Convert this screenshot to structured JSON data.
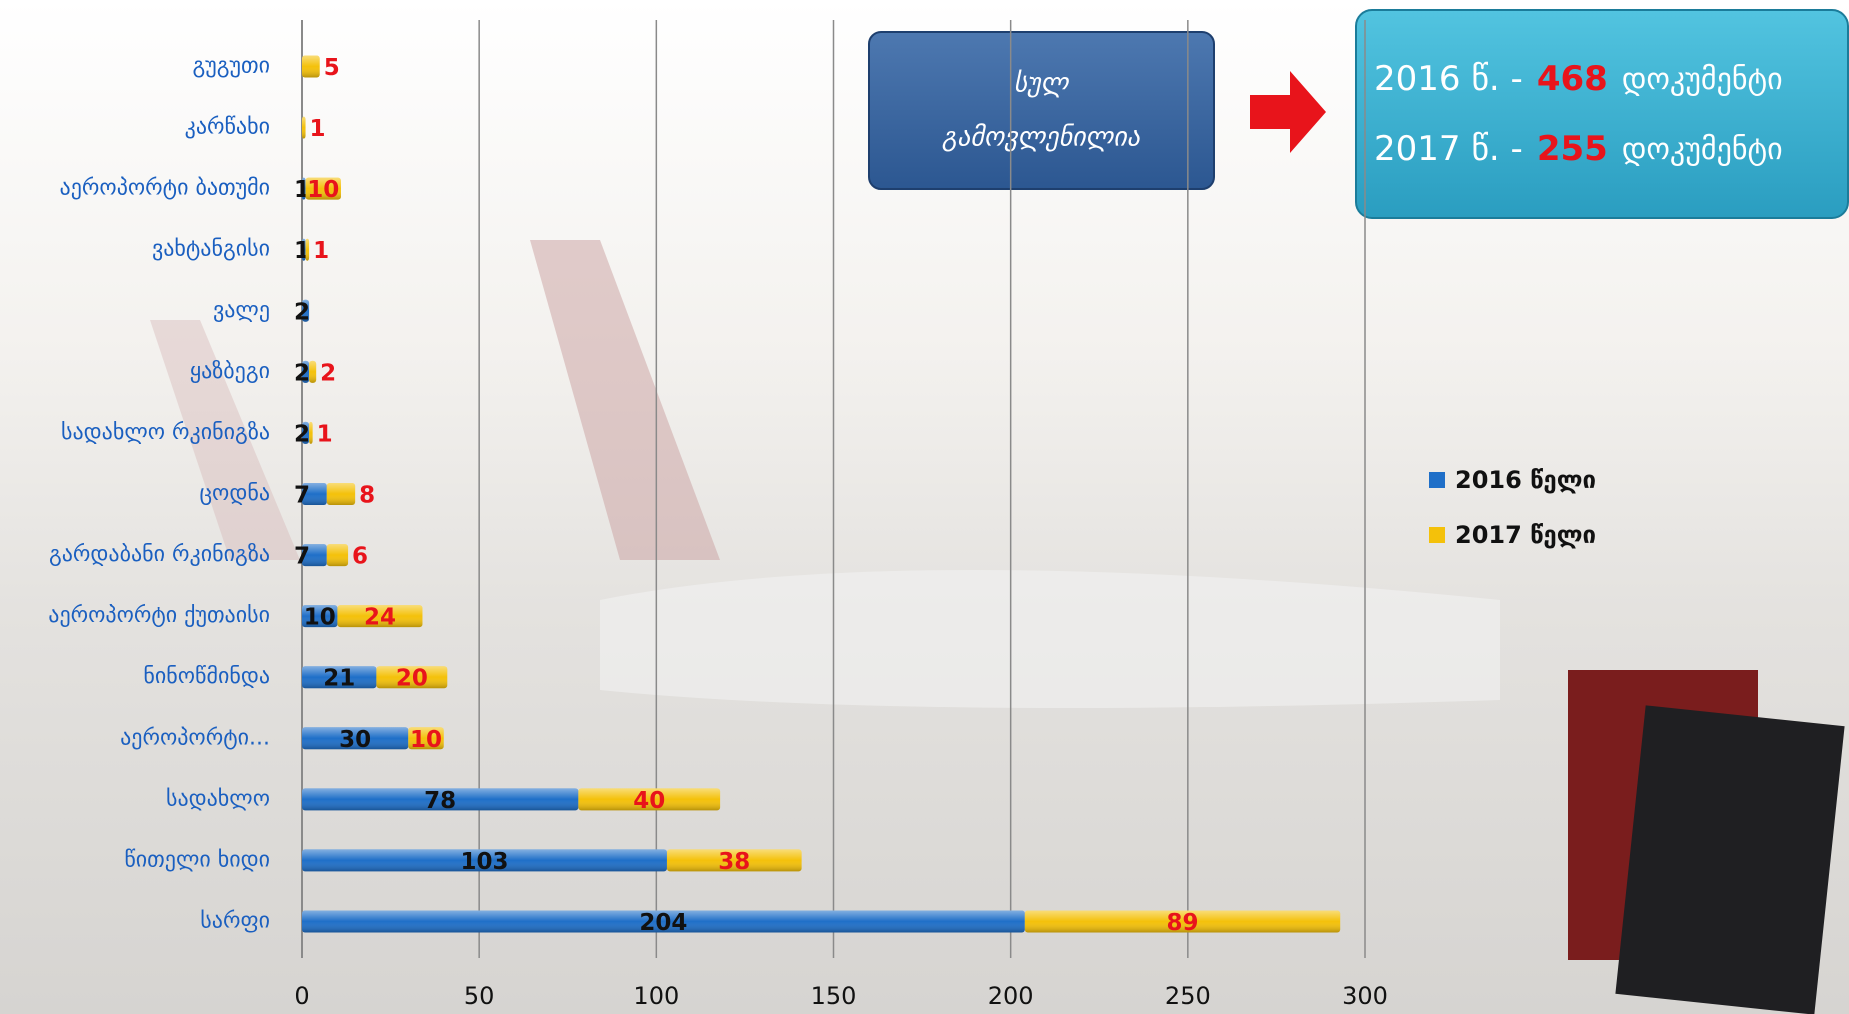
{
  "chart_data": {
    "type": "bar",
    "orientation": "horizontal",
    "stacked": true,
    "categories": [
      "გუგუთი",
      "კარწახი",
      "აეროპორტი ბათუმი",
      "ვახტანგისი",
      "ვალე",
      "ყაზბეგი",
      "სადახლო რკინიგზა",
      "ცოდნა",
      "გარდაბანი რკინიგზა",
      "აეროპორტი ქუთაისი",
      "ნინოწმინდა",
      "აეროპორტი...",
      "სადახლო",
      "წითელი ხიდი",
      "სარფი"
    ],
    "series": [
      {
        "name": "2016 წელი",
        "color": "#1f6fc8",
        "label_color": "#111111",
        "values": [
          null,
          null,
          1,
          1,
          2,
          2,
          2,
          7,
          7,
          10,
          21,
          30,
          78,
          103,
          204
        ]
      },
      {
        "name": "2017 წელი",
        "color": "#f4c10a",
        "label_color": "#e8141b",
        "values": [
          5,
          1,
          10,
          1,
          null,
          2,
          1,
          8,
          6,
          24,
          20,
          10,
          40,
          38,
          89
        ]
      }
    ],
    "xlim": [
      0,
      300
    ],
    "xticks": [
      0,
      50,
      100,
      150,
      200,
      250,
      300
    ],
    "grid": true,
    "legend": "right",
    "annotations": {
      "box_lines": [
        "სულ",
        "გამოვლენილია"
      ],
      "totals": [
        {
          "prefix": "2016 წ. -",
          "value": 468,
          "suffix": "დოკუმენტი"
        },
        {
          "prefix": "2017 წ. -",
          "value": 255,
          "suffix": "დოკუმენტი"
        }
      ]
    }
  }
}
